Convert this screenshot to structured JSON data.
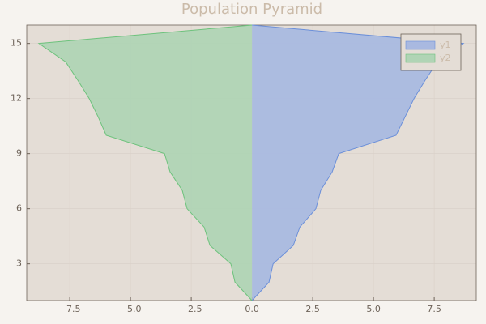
{
  "chart_data": {
    "type": "horizontal-area",
    "title": "Population Pyramid",
    "y": [
      1,
      2,
      3,
      4,
      5,
      6,
      7,
      8,
      9,
      10,
      11,
      12,
      13,
      14,
      15,
      16
    ],
    "series": [
      {
        "name": "y1",
        "color": "#6b8fd9",
        "fill": "#a9b9e0",
        "values": [
          0,
          0.7,
          0.87,
          1.7,
          1.97,
          2.63,
          2.83,
          3.3,
          3.57,
          5.93,
          6.3,
          6.67,
          7.13,
          7.63,
          8.7,
          0
        ]
      },
      {
        "name": "y2",
        "color": "#6dc27c",
        "fill": "#b0d4b5",
        "values": [
          0,
          -0.7,
          -0.87,
          -1.73,
          -1.97,
          -2.67,
          -2.87,
          -3.37,
          -3.6,
          -6.0,
          -6.33,
          -6.7,
          -7.17,
          -7.67,
          -8.77,
          0
        ]
      }
    ],
    "xlim": [
      -9.27,
      9.23
    ],
    "ylim": [
      1,
      16
    ],
    "xticks": [
      {
        "value": -7.5,
        "label": "−7.5"
      },
      {
        "value": -5,
        "label": "−5.0"
      },
      {
        "value": -2.5,
        "label": "−2.5"
      },
      {
        "value": 0,
        "label": "0.0"
      },
      {
        "value": 2.5,
        "label": "2.5"
      },
      {
        "value": 5,
        "label": "5.0"
      },
      {
        "value": 7.5,
        "label": "7.5"
      }
    ],
    "yticks": [
      3,
      6,
      9,
      12,
      15
    ],
    "grid": true,
    "legend": "top-right"
  }
}
